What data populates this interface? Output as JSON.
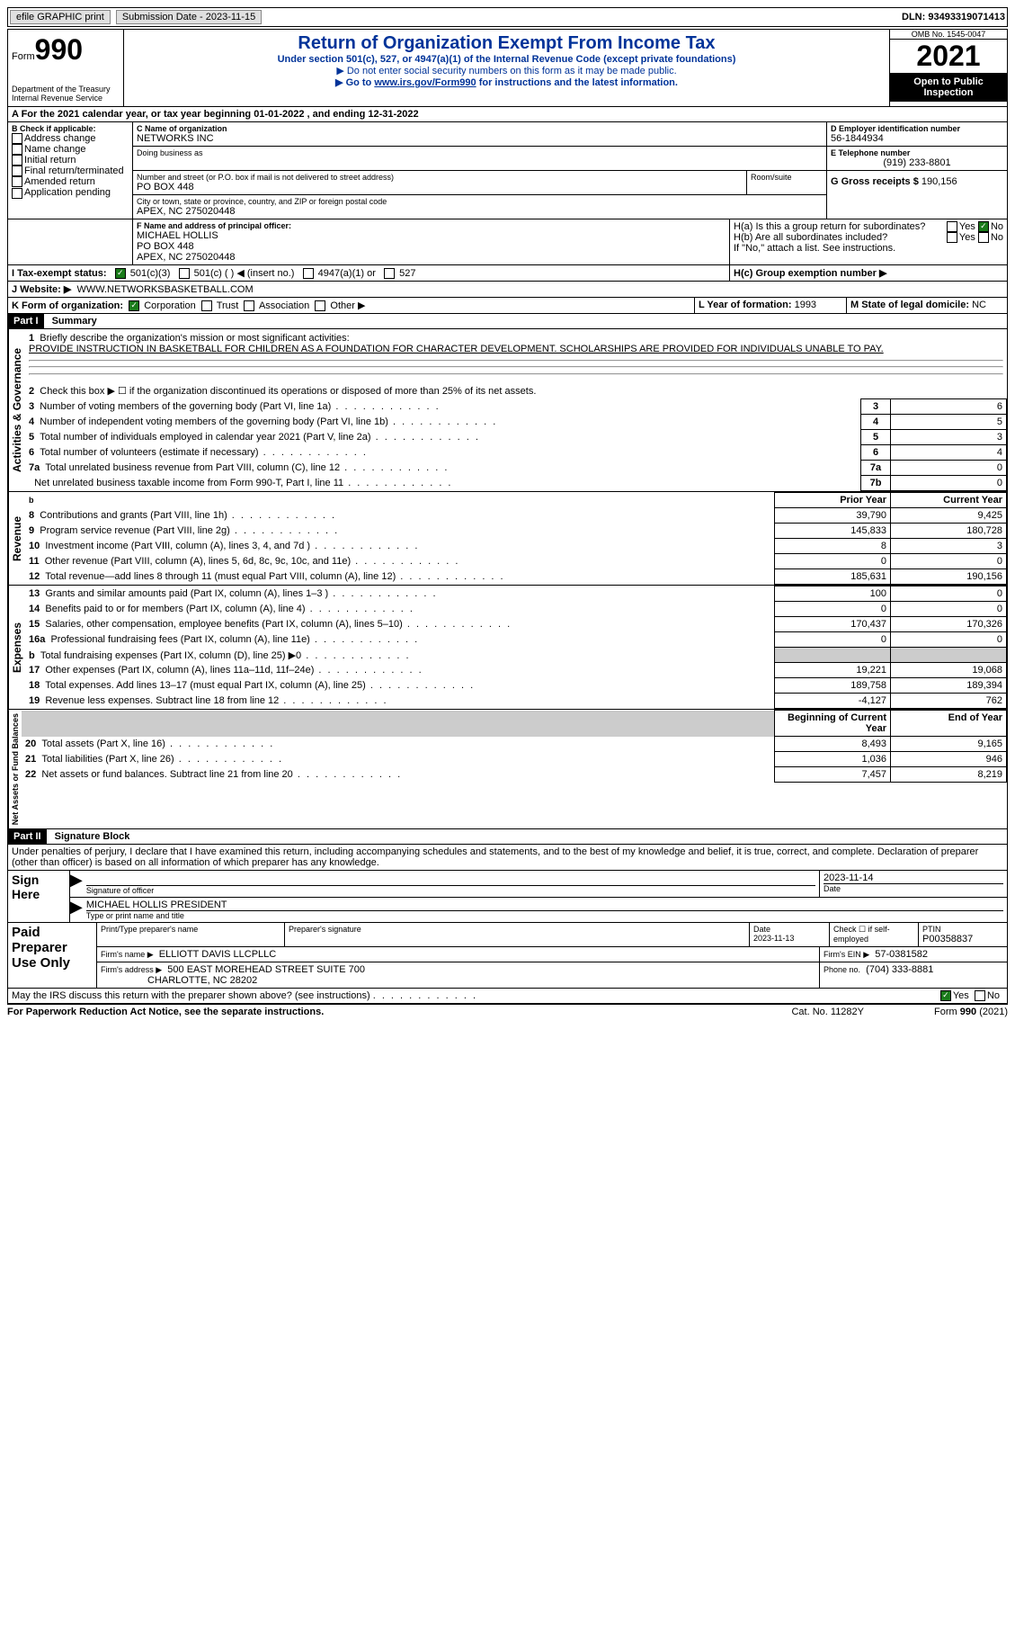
{
  "top": {
    "efile_label": "efile GRAPHIC print",
    "submission_label": "Submission Date - 2023-11-15",
    "dln_label": "DLN: 93493319071413"
  },
  "header": {
    "form_word": "Form",
    "form_num": "990",
    "dept": "Department of the Treasury\nInternal Revenue Service",
    "title": "Return of Organization Exempt From Income Tax",
    "subtitle": "Under section 501(c), 527, or 4947(a)(1) of the Internal Revenue Code (except private foundations)",
    "note1": "▶ Do not enter social security numbers on this form as it may be made public.",
    "note2_pre": "▶ Go to ",
    "note2_link": "www.irs.gov/Form990",
    "note2_post": " for instructions and the latest information.",
    "omb": "OMB No. 1545-0047",
    "year": "2021",
    "open": "Open to Public Inspection"
  },
  "A": {
    "text": "A For the 2021 calendar year, or tax year beginning 01-01-2022   , and ending 12-31-2022"
  },
  "B": {
    "label": "B Check if applicable:",
    "opts": [
      "Address change",
      "Name change",
      "Initial return",
      "Final return/terminated",
      "Amended return",
      "Application pending"
    ]
  },
  "C": {
    "name_label": "C Name of organization",
    "name": "NETWORKS INC",
    "dba_label": "Doing business as",
    "street_label": "Number and street (or P.O. box if mail is not delivered to street address)",
    "street": "PO BOX 448",
    "room_label": "Room/suite",
    "city_label": "City or town, state or province, country, and ZIP or foreign postal code",
    "city": "APEX, NC  275020448"
  },
  "D": {
    "label": "D Employer identification number",
    "value": "56-1844934"
  },
  "E": {
    "label": "E Telephone number",
    "value": "(919) 233-8801"
  },
  "G": {
    "label": "G Gross receipts $",
    "value": "190,156"
  },
  "F": {
    "label": "F  Name and address of principal officer:",
    "name": "MICHAEL HOLLIS",
    "street": "PO BOX 448",
    "city": "APEX, NC  275020448"
  },
  "H": {
    "a": "H(a)  Is this a group return for subordinates?",
    "b": "H(b)  Are all subordinates included?",
    "b_note": "If \"No,\" attach a list. See instructions.",
    "c": "H(c)  Group exemption number ▶",
    "yes": "Yes",
    "no": "No"
  },
  "I": {
    "label": "I   Tax-exempt status:",
    "opts": [
      "501(c)(3)",
      "501(c) (  ) ◀ (insert no.)",
      "4947(a)(1) or",
      "527"
    ]
  },
  "J": {
    "label": "J  Website: ▶",
    "value": "WWW.NETWORKSBASKETBALL.COM"
  },
  "K": {
    "label": "K Form of organization:",
    "opts": [
      "Corporation",
      "Trust",
      "Association",
      "Other ▶"
    ]
  },
  "L": {
    "label": "L Year of formation:",
    "value": "1993"
  },
  "M": {
    "label": "M State of legal domicile:",
    "value": "NC"
  },
  "part1": {
    "header": "Part I",
    "title": "Summary",
    "l1_label": "Briefly describe the organization's mission or most significant activities:",
    "l1_text": "PROVIDE INSTRUCTION IN BASKETBALL FOR CHILDREN AS A FOUNDATION FOR CHARACTER DEVELOPMENT. SCHOLARSHIPS ARE PROVIDED FOR INDIVIDUALS UNABLE TO PAY.",
    "l2": "Check this box ▶ ☐  if the organization discontinued its operations or disposed of more than 25% of its net assets.",
    "governance": "Activities & Governance",
    "revenue": "Revenue",
    "expenses": "Expenses",
    "netassets": "Net Assets or Fund Balances",
    "lines_gov": [
      {
        "n": "3",
        "t": "Number of voting members of the governing body (Part VI, line 1a)",
        "box": "3",
        "v": "6"
      },
      {
        "n": "4",
        "t": "Number of independent voting members of the governing body (Part VI, line 1b)",
        "box": "4",
        "v": "5"
      },
      {
        "n": "5",
        "t": "Total number of individuals employed in calendar year 2021 (Part V, line 2a)",
        "box": "5",
        "v": "3"
      },
      {
        "n": "6",
        "t": "Total number of volunteers (estimate if necessary)",
        "box": "6",
        "v": "4"
      },
      {
        "n": "7a",
        "t": "Total unrelated business revenue from Part VIII, column (C), line 12",
        "box": "7a",
        "v": "0"
      },
      {
        "n": "",
        "t": "Net unrelated business taxable income from Form 990-T, Part I, line 11",
        "box": "7b",
        "v": "0"
      }
    ],
    "col_prior": "Prior Year",
    "col_current": "Current Year",
    "lines_rev": [
      {
        "n": "8",
        "t": "Contributions and grants (Part VIII, line 1h)",
        "p": "39,790",
        "c": "9,425"
      },
      {
        "n": "9",
        "t": "Program service revenue (Part VIII, line 2g)",
        "p": "145,833",
        "c": "180,728"
      },
      {
        "n": "10",
        "t": "Investment income (Part VIII, column (A), lines 3, 4, and 7d )",
        "p": "8",
        "c": "3"
      },
      {
        "n": "11",
        "t": "Other revenue (Part VIII, column (A), lines 5, 6d, 8c, 9c, 10c, and 11e)",
        "p": "0",
        "c": "0"
      },
      {
        "n": "12",
        "t": "Total revenue—add lines 8 through 11 (must equal Part VIII, column (A), line 12)",
        "p": "185,631",
        "c": "190,156"
      }
    ],
    "lines_exp": [
      {
        "n": "13",
        "t": "Grants and similar amounts paid (Part IX, column (A), lines 1–3 )",
        "p": "100",
        "c": "0"
      },
      {
        "n": "14",
        "t": "Benefits paid to or for members (Part IX, column (A), line 4)",
        "p": "0",
        "c": "0"
      },
      {
        "n": "15",
        "t": "Salaries, other compensation, employee benefits (Part IX, column (A), lines 5–10)",
        "p": "170,437",
        "c": "170,326"
      },
      {
        "n": "16a",
        "t": "Professional fundraising fees (Part IX, column (A), line 11e)",
        "p": "0",
        "c": "0"
      },
      {
        "n": "b",
        "t": "Total fundraising expenses (Part IX, column (D), line 25) ▶0",
        "p": "",
        "c": "",
        "gray": true
      },
      {
        "n": "17",
        "t": "Other expenses (Part IX, column (A), lines 11a–11d, 11f–24e)",
        "p": "19,221",
        "c": "19,068"
      },
      {
        "n": "18",
        "t": "Total expenses. Add lines 13–17 (must equal Part IX, column (A), line 25)",
        "p": "189,758",
        "c": "189,394"
      },
      {
        "n": "19",
        "t": "Revenue less expenses. Subtract line 18 from line 12",
        "p": "-4,127",
        "c": "762"
      }
    ],
    "col_begin": "Beginning of Current Year",
    "col_end": "End of Year",
    "lines_net": [
      {
        "n": "20",
        "t": "Total assets (Part X, line 16)",
        "p": "8,493",
        "c": "9,165"
      },
      {
        "n": "21",
        "t": "Total liabilities (Part X, line 26)",
        "p": "1,036",
        "c": "946"
      },
      {
        "n": "22",
        "t": "Net assets or fund balances. Subtract line 21 from line 20",
        "p": "7,457",
        "c": "8,219"
      }
    ]
  },
  "part2": {
    "header": "Part II",
    "title": "Signature Block",
    "declaration": "Under penalties of perjury, I declare that I have examined this return, including accompanying schedules and statements, and to the best of my knowledge and belief, it is true, correct, and complete. Declaration of preparer (other than officer) is based on all information of which preparer has any knowledge.",
    "sign_here": "Sign Here",
    "sig_officer": "Signature of officer",
    "sig_date": "2023-11-14",
    "sig_date_label": "Date",
    "officer_name": "MICHAEL HOLLIS  PRESIDENT",
    "type_name": "Type or print name and title",
    "paid": "Paid Preparer Use Only",
    "prep_name_label": "Print/Type preparer's name",
    "prep_sig_label": "Preparer's signature",
    "prep_date_label": "Date",
    "prep_date": "2023-11-13",
    "check_self": "Check ☐ if self-employed",
    "ptin_label": "PTIN",
    "ptin": "P00358837",
    "firm_name_label": "Firm's name   ▶",
    "firm_name": "ELLIOTT DAVIS LLCPLLC",
    "firm_ein_label": "Firm's EIN ▶",
    "firm_ein": "57-0381582",
    "firm_addr_label": "Firm's address ▶",
    "firm_addr1": "500 EAST MOREHEAD STREET SUITE 700",
    "firm_addr2": "CHARLOTTE, NC  28202",
    "phone_label": "Phone no.",
    "phone": "(704) 333-8881",
    "may_irs": "May the IRS discuss this return with the preparer shown above? (see instructions)",
    "paperwork": "For Paperwork Reduction Act Notice, see the separate instructions.",
    "cat": "Cat. No. 11282Y",
    "form_footer": "Form 990 (2021)"
  }
}
